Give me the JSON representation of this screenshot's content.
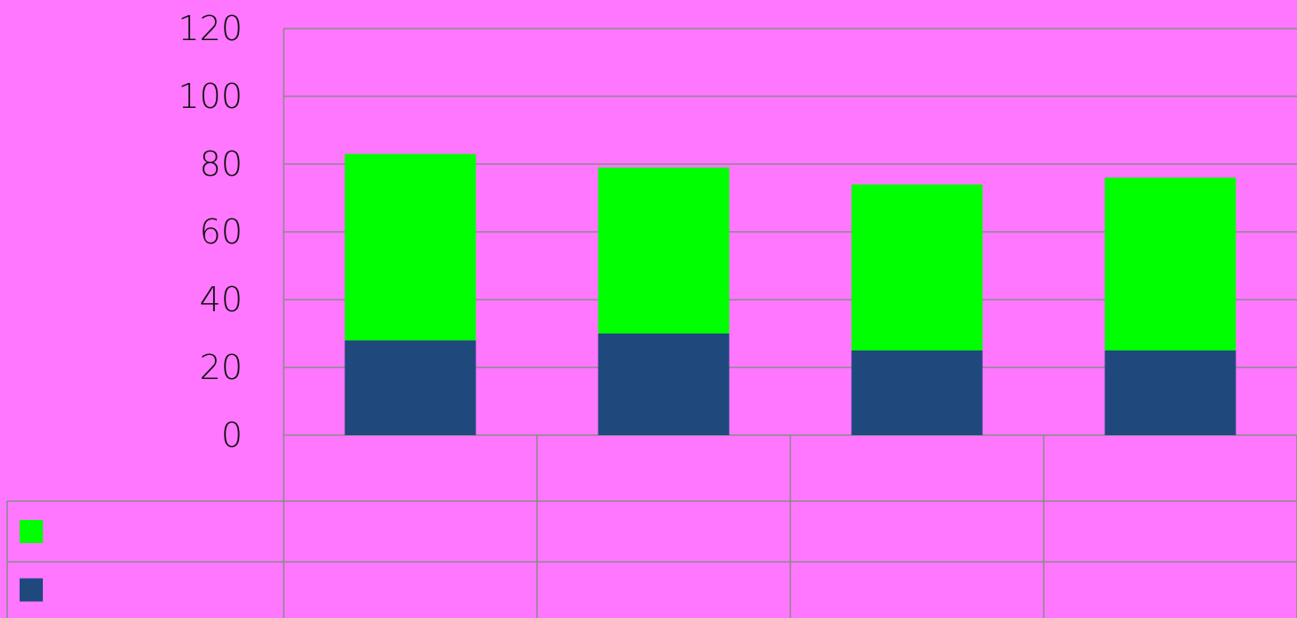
{
  "colors": {
    "background": "#ff77ff",
    "gridline": "#8a8a8a",
    "series_top": "#00ff00",
    "series_bottom": "#1f497d"
  },
  "chart_data": {
    "type": "bar",
    "stacked": true,
    "categories": [
      "",
      "",
      "",
      ""
    ],
    "series": [
      {
        "values": [
          28,
          30,
          25,
          25
        ],
        "color": "#1f497d"
      },
      {
        "values": [
          55,
          49,
          49,
          51
        ],
        "color": "#00ff00"
      }
    ],
    "ylim": [
      0,
      120
    ],
    "yticks": [
      0,
      20,
      40,
      60,
      80,
      100,
      120
    ],
    "grid": true,
    "legend": "data-table-below"
  }
}
